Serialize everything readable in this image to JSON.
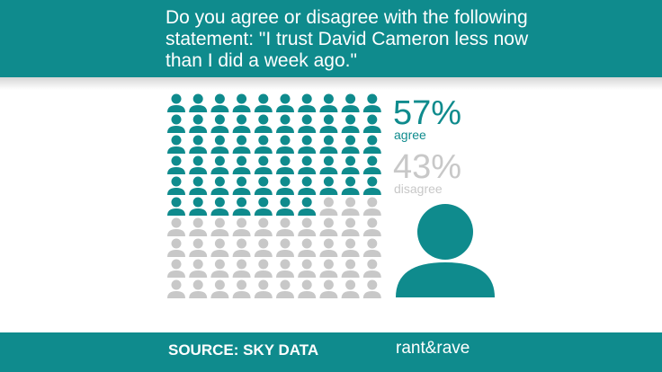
{
  "chart_data": {
    "type": "pictogram",
    "title": "Do you agree or disagree with the following statement: \"I trust David Cameron less now than I did a week ago.\"",
    "categories": [
      "agree",
      "disagree"
    ],
    "values": [
      57,
      43
    ],
    "value_labels": [
      "57%",
      "43%"
    ],
    "colors": [
      "#0f8b8d",
      "#c8c8c8"
    ],
    "source": "SOURCE: SKY DATA",
    "logo": "rant&rave"
  }
}
